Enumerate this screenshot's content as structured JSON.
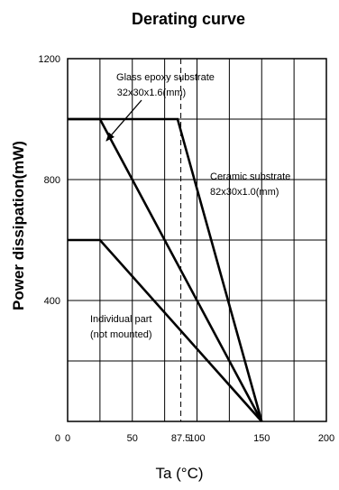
{
  "chart_data": {
    "type": "line",
    "title": "Derating curve",
    "xlabel": "Ta (°C)",
    "ylabel": "Power dissipation(mW)",
    "xlim": [
      0,
      200
    ],
    "ylim": [
      0,
      1200
    ],
    "x_ticks": [
      {
        "value": 0,
        "label": "0"
      },
      {
        "value": 50,
        "label": "50"
      },
      {
        "value": 87.5,
        "label": "87.5"
      },
      {
        "value": 100,
        "label": "100"
      },
      {
        "value": 150,
        "label": "150"
      },
      {
        "value": 200,
        "label": "200"
      }
    ],
    "y_ticks": [
      {
        "value": 0,
        "label": "0"
      },
      {
        "value": 400,
        "label": "400"
      },
      {
        "value": 800,
        "label": "800"
      },
      {
        "value": 1200,
        "label": "1200"
      }
    ],
    "grid": true,
    "vertical_gridlines": [
      25,
      50,
      75,
      100,
      125,
      150,
      175
    ],
    "horizontal_gridlines": [
      200,
      400,
      600,
      800,
      1000
    ],
    "reference_line": {
      "x": 87.5,
      "style": "dashed"
    },
    "series": [
      {
        "name": "Glass epoxy substrate 32x30x1.6(mm)",
        "x": [
          0,
          25,
          150
        ],
        "y": [
          1000,
          1000,
          0
        ]
      },
      {
        "name": "Ceramic substrate 82x30x1.0(mm)",
        "x": [
          0,
          85,
          150
        ],
        "y": [
          1000,
          1000,
          0
        ]
      },
      {
        "name": "Individual part (not mounted)",
        "x": [
          0,
          25,
          150
        ],
        "y": [
          600,
          600,
          0
        ]
      }
    ],
    "annotations": [
      {
        "id": "glass",
        "lines": [
          "Glass epoxy substrate",
          "32x30x1.6(mm)"
        ]
      },
      {
        "id": "ceramic",
        "lines": [
          "Ceramic substrate",
          "82x30x1.0(mm)"
        ]
      },
      {
        "id": "individual",
        "lines": [
          "Individual part",
          "(not mounted)"
        ]
      }
    ],
    "colors": {
      "line": "#000000",
      "grid": "#000000",
      "background": "#ffffff"
    }
  }
}
